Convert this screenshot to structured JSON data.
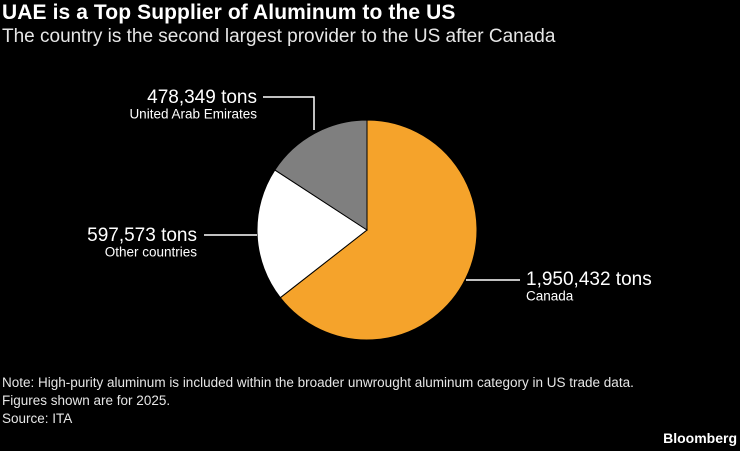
{
  "header": {
    "title": "UAE is a Top Supplier of Aluminum to the US",
    "subtitle": "The country is the second largest provider to the US after Canada"
  },
  "chart_data": {
    "type": "pie",
    "start": "12 o'clock",
    "direction": "clockwise",
    "slices": [
      {
        "label": "Canada",
        "value": 1950432,
        "value_label": "1,950,432 tons",
        "color": "#f5a32b"
      },
      {
        "label": "Other countries",
        "value": 597573,
        "value_label": "597,573 tons",
        "color": "#ffffff"
      },
      {
        "label": "United Arab Emirates",
        "value": 478349,
        "value_label": "478,349 tons",
        "color": "#7f7f7f"
      }
    ]
  },
  "footer": {
    "note_line1": "Note: High-purity aluminum is included within the broader unwrought aluminum category in US trade data.",
    "note_line2": "Figures shown are for 2025.",
    "source": "Source: ITA",
    "brand": "Bloomberg"
  }
}
